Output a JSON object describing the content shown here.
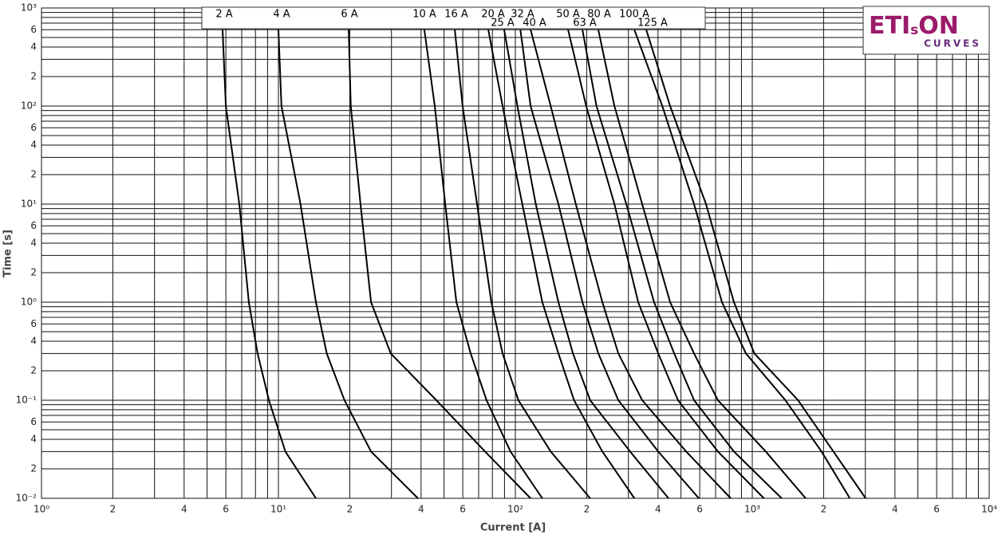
{
  "chart_data": {
    "type": "line",
    "log_x": true,
    "log_y": true,
    "grid": true,
    "xlabel": "Current [A]",
    "ylabel": "Time [s]",
    "xlim": [
      1,
      10000
    ],
    "ylim": [
      0.01,
      1000
    ],
    "xticks": [
      {
        "value": 1,
        "label": "10⁰"
      },
      2,
      4,
      6,
      {
        "value": 10,
        "label": "10¹"
      },
      {
        "value": 20,
        "label": "2"
      },
      {
        "value": 40,
        "label": "4"
      },
      {
        "value": 60,
        "label": "6"
      },
      {
        "value": 100,
        "label": "10²"
      },
      {
        "value": 200,
        "label": "2"
      },
      {
        "value": 400,
        "label": "4"
      },
      {
        "value": 600,
        "label": "6"
      },
      {
        "value": 1000,
        "label": "10³"
      },
      {
        "value": 2000,
        "label": "2"
      },
      {
        "value": 4000,
        "label": "4"
      },
      {
        "value": 6000,
        "label": "6"
      },
      {
        "value": 10000,
        "label": "10⁴"
      }
    ],
    "xminorticks": [
      3,
      5,
      7,
      8,
      9,
      30,
      50,
      70,
      80,
      90,
      300,
      500,
      700,
      800,
      900,
      3000,
      5000,
      7000,
      8000,
      9000
    ],
    "yticks": [
      {
        "value": 0.01,
        "label": "10⁻²"
      },
      {
        "value": 0.02,
        "label": "2"
      },
      {
        "value": 0.04,
        "label": "4"
      },
      {
        "value": 0.06,
        "label": "6"
      },
      {
        "value": 0.1,
        "label": "10⁻¹"
      },
      {
        "value": 0.2,
        "label": "2"
      },
      {
        "value": 0.4,
        "label": "4"
      },
      {
        "value": 0.6,
        "label": "6"
      },
      {
        "value": 1,
        "label": "10⁰"
      },
      2,
      4,
      6,
      {
        "value": 10,
        "label": "10¹"
      },
      {
        "value": 20,
        "label": "2"
      },
      {
        "value": 40,
        "label": "4"
      },
      {
        "value": 60,
        "label": "6"
      },
      {
        "value": 100,
        "label": "10²"
      },
      {
        "value": 200,
        "label": "2"
      },
      {
        "value": 400,
        "label": "4"
      },
      {
        "value": 600,
        "label": "6"
      },
      {
        "value": 1000,
        "label": "10³"
      }
    ],
    "yminorticks": [
      0.03,
      0.05,
      0.07,
      0.08,
      0.09,
      0.3,
      0.5,
      0.7,
      0.8,
      0.9,
      3,
      5,
      7,
      8,
      9,
      30,
      50,
      70,
      80,
      90,
      300,
      500,
      700,
      800,
      900
    ],
    "series": [
      {
        "name": "2 A",
        "color": "#000000",
        "x": [
          5.81,
          6.0,
          6.84,
          7.5,
          8.17,
          9.12,
          10.7,
          14.4
        ],
        "values": [
          600,
          100,
          10,
          1,
          0.3,
          0.1,
          0.03,
          0.01
        ]
      },
      {
        "name": "4 A",
        "color": "#000000",
        "x": [
          10,
          10.3,
          12.4,
          14.4,
          16.0,
          19.0,
          24.6,
          38.8
        ],
        "values": [
          600,
          100,
          10,
          1,
          0.3,
          0.1,
          0.03,
          0.01
        ]
      },
      {
        "name": "6 A",
        "color": "#000000",
        "x": [
          19.8,
          20.2,
          22.2,
          24.6,
          29.8,
          46.4,
          74.5,
          116
        ],
        "values": [
          600,
          100,
          10,
          1,
          0.3,
          0.1,
          0.03,
          0.01
        ]
      },
      {
        "name": "10 A",
        "color": "#000000",
        "x": [
          41.3,
          45.7,
          50.6,
          56.4,
          64.8,
          75.6,
          95.4,
          130
        ],
        "values": [
          600,
          100,
          10,
          1,
          0.3,
          0.1,
          0.03,
          0.01
        ]
      },
      {
        "name": "16 A",
        "color": "#000000",
        "x": [
          55.5,
          59.9,
          68.9,
          79.2,
          88.3,
          103,
          141,
          207
        ],
        "values": [
          600,
          100,
          10,
          1,
          0.3,
          0.1,
          0.03,
          0.01
        ]
      },
      {
        "name": "20 A",
        "color": "#000000",
        "x": [
          76.9,
          88.3,
          107,
          130,
          152,
          177,
          233,
          318
        ],
        "values": [
          600,
          100,
          10,
          1,
          0.3,
          0.1,
          0.03,
          0.01
        ]
      },
      {
        "name": "25 A",
        "color": "#000000",
        "x": [
          89.7,
          102,
          122,
          152,
          175,
          207,
          305,
          443
        ],
        "values": [
          600,
          100,
          10,
          1,
          0.3,
          0.1,
          0.03,
          0.01
        ]
      },
      {
        "name": "32 A",
        "color": "#000000",
        "x": [
          105,
          116,
          152,
          192,
          224,
          272,
          401,
          595
        ],
        "values": [
          600,
          100,
          10,
          1,
          0.3,
          0.1,
          0.03,
          0.01
        ]
      },
      {
        "name": "40 A",
        "color": "#000000",
        "x": [
          116,
          141,
          180,
          233,
          272,
          343,
          526,
          811
        ],
        "values": [
          600,
          100,
          10,
          1,
          0.3,
          0.1,
          0.03,
          0.01
        ]
      },
      {
        "name": "50 A",
        "color": "#000000",
        "x": [
          167,
          199,
          262,
          330,
          401,
          486,
          716,
          1120
        ],
        "values": [
          600,
          100,
          10,
          1,
          0.3,
          0.1,
          0.03,
          0.01
        ]
      },
      {
        "name": "63 A",
        "color": "#000000",
        "x": [
          192,
          220,
          294,
          385,
          468,
          568,
          837,
          1330
        ],
        "values": [
          600,
          100,
          10,
          1,
          0.3,
          0.1,
          0.03,
          0.01
        ]
      },
      {
        "name": "80 A",
        "color": "#000000",
        "x": [
          224,
          262,
          343,
          450,
          568,
          716,
          1140,
          1680
        ],
        "values": [
          600,
          100,
          10,
          1,
          0.3,
          0.1,
          0.03,
          0.01
        ]
      },
      {
        "name": "100 A",
        "color": "#000000",
        "x": [
          318,
          417,
          568,
          745,
          940,
          1380,
          1960,
          2580
        ],
        "values": [
          600,
          100,
          10,
          1,
          0.3,
          0.1,
          0.03,
          0.01
        ]
      },
      {
        "name": "125 A",
        "color": "#000000",
        "x": [
          357,
          450,
          638,
          837,
          1020,
          1560,
          2200,
          3010
        ],
        "values": [
          600,
          100,
          10,
          1,
          0.3,
          0.1,
          0.03,
          0.01
        ]
      }
    ]
  },
  "logo": {
    "eti": "ETI",
    "s": "s",
    "on": "ON",
    "tagline": "CURVES"
  }
}
